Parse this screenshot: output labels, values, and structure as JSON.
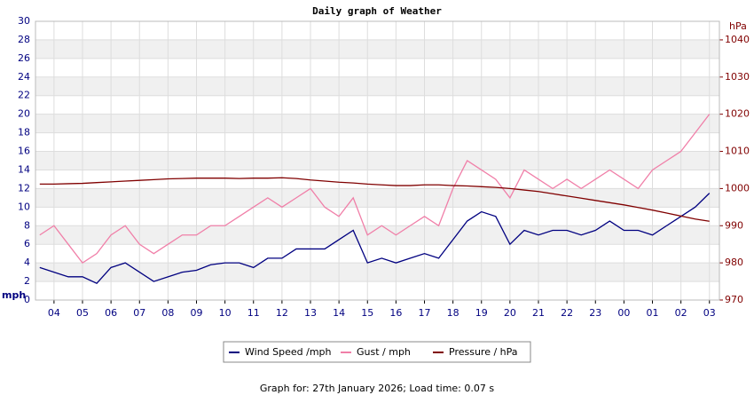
{
  "chart_data": {
    "type": "line",
    "title": "Daily graph of Weather",
    "ylabel": "mph",
    "y2label": "hPa",
    "x": [
      -0.5,
      0,
      0.5,
      1,
      1.5,
      2,
      2.5,
      3,
      3.5,
      4,
      4.5,
      5,
      5.5,
      6,
      6.5,
      7,
      7.5,
      8,
      8.5,
      9,
      9.5,
      10,
      10.5,
      11,
      11.5,
      12,
      12.5,
      13,
      13.5,
      14,
      14.5,
      15,
      15.5,
      16,
      16.5,
      17,
      17.5,
      18,
      18.5,
      19,
      19.5,
      20,
      20.5,
      21,
      21.5,
      22,
      22.5,
      23
    ],
    "xlim": [
      -0.65,
      23.35
    ],
    "xticks": [
      {
        "value": 0,
        "label": "04"
      },
      {
        "value": 1,
        "label": "05"
      },
      {
        "value": 2,
        "label": "06"
      },
      {
        "value": 3,
        "label": "07"
      },
      {
        "value": 4,
        "label": "08"
      },
      {
        "value": 5,
        "label": "09"
      },
      {
        "value": 6,
        "label": "10"
      },
      {
        "value": 7,
        "label": "11"
      },
      {
        "value": 8,
        "label": "12"
      },
      {
        "value": 9,
        "label": "13"
      },
      {
        "value": 10,
        "label": "14"
      },
      {
        "value": 11,
        "label": "15"
      },
      {
        "value": 12,
        "label": "16"
      },
      {
        "value": 13,
        "label": "17"
      },
      {
        "value": 14,
        "label": "18"
      },
      {
        "value": 15,
        "label": "19"
      },
      {
        "value": 16,
        "label": "20"
      },
      {
        "value": 17,
        "label": "21"
      },
      {
        "value": 18,
        "label": "22"
      },
      {
        "value": 19,
        "label": "23"
      },
      {
        "value": 20,
        "label": "00"
      },
      {
        "value": 21,
        "label": "01"
      },
      {
        "value": 22,
        "label": "02"
      },
      {
        "value": 23,
        "label": "03"
      }
    ],
    "ylim": [
      0,
      30
    ],
    "yticks": [
      0,
      2,
      4,
      6,
      8,
      10,
      12,
      14,
      16,
      18,
      20,
      22,
      24,
      26,
      28,
      30
    ],
    "y2lim": [
      970,
      1045
    ],
    "y2ticks": [
      970,
      980,
      990,
      1000,
      1010,
      1020,
      1030,
      1040
    ],
    "grid": true,
    "series": [
      {
        "name": "Wind Speed /mph",
        "color": "#000080",
        "values": [
          3.5,
          3,
          2.5,
          2.5,
          1.8,
          3.5,
          4,
          3,
          2,
          2.5,
          3,
          3.2,
          3.8,
          4,
          4,
          3.5,
          4.5,
          4.5,
          5.5,
          5.5,
          5.5,
          6.5,
          7.5,
          4,
          4.5,
          4,
          4.5,
          5,
          4.5,
          6.5,
          8.5,
          9.5,
          9,
          6,
          7.5,
          7,
          7.5,
          7.5,
          7,
          7.5,
          8.5,
          7.5,
          7.5,
          7,
          8,
          9,
          10,
          11.5
        ]
      },
      {
        "name": "Gust / mph",
        "color": "#f07fa8",
        "values": [
          7,
          8,
          6,
          4,
          5,
          7,
          8,
          6,
          5,
          6,
          7,
          7,
          8,
          8,
          9,
          10,
          11,
          10,
          11,
          12,
          10,
          9,
          11,
          7,
          8,
          7,
          8,
          9,
          8,
          12,
          15,
          14,
          13,
          11,
          14,
          13,
          12,
          13,
          12,
          13,
          14,
          13,
          12,
          14,
          15,
          16,
          18,
          20
        ]
      },
      {
        "name": "Pressure / hPa",
        "color": "#800000",
        "axis": "y2",
        "values": [
          1001.2,
          1001.2,
          1001.3,
          1001.4,
          1001.6,
          1001.8,
          1002.0,
          1002.2,
          1002.4,
          1002.6,
          1002.7,
          1002.8,
          1002.8,
          1002.8,
          1002.7,
          1002.8,
          1002.8,
          1002.9,
          1002.7,
          1002.3,
          1002.0,
          1001.7,
          1001.5,
          1001.2,
          1001.0,
          1000.8,
          1000.8,
          1001.0,
          1001.0,
          1000.8,
          1000.7,
          1000.5,
          1000.3,
          1000.0,
          999.6,
          999.2,
          998.6,
          998.0,
          997.4,
          996.8,
          996.2,
          995.6,
          994.9,
          994.2,
          993.4,
          992.6,
          991.8,
          991.2
        ]
      }
    ]
  },
  "footer": "Graph for: 27th January 2026; Load time: 0.07 s"
}
